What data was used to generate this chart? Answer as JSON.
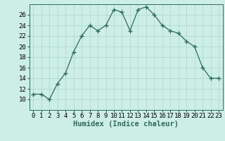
{
  "x": [
    0,
    1,
    2,
    3,
    4,
    5,
    6,
    7,
    8,
    9,
    10,
    11,
    12,
    13,
    14,
    15,
    16,
    17,
    18,
    19,
    20,
    21,
    22,
    23
  ],
  "y": [
    11,
    11,
    10,
    13,
    15,
    19,
    22,
    24,
    23,
    24,
    27,
    26.5,
    23,
    27,
    27.5,
    26,
    24,
    23,
    22.5,
    21,
    20,
    16,
    14,
    14
  ],
  "line_color": "#2e6b5e",
  "marker": "+",
  "marker_size": 4,
  "bg_color": "#cceee4",
  "grid_color": "#a8d8cc",
  "xlabel": "Humidex (Indice chaleur)",
  "ylim": [
    8,
    28
  ],
  "yticks": [
    10,
    12,
    14,
    16,
    18,
    20,
    22,
    24,
    26
  ],
  "xticks": [
    0,
    1,
    2,
    3,
    4,
    5,
    6,
    7,
    8,
    9,
    10,
    11,
    12,
    13,
    14,
    15,
    16,
    17,
    18,
    19,
    20,
    21,
    22,
    23
  ],
  "xlim": [
    -0.5,
    23.5
  ],
  "label_fontsize": 7.5,
  "tick_fontsize": 6.5
}
